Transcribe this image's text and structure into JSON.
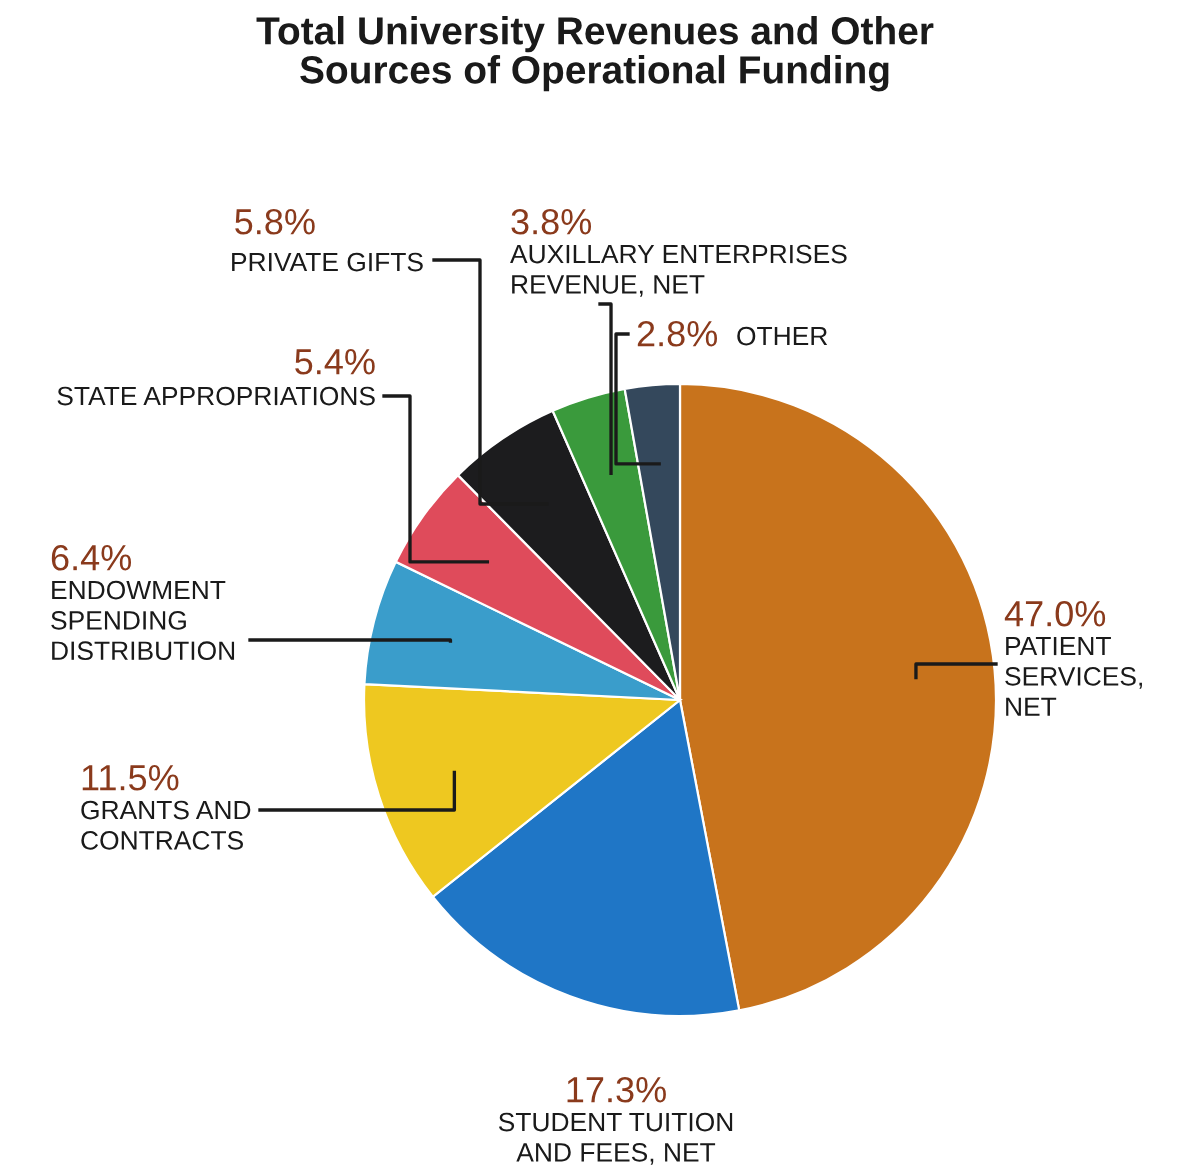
{
  "chart_data": {
    "type": "pie",
    "title": "Total University Revenues and Other\nSources of Operational Funding",
    "categories": [
      "PATIENT\nSERVICES,\nNET",
      "STUDENT TUITION\nAND FEES, NET",
      "GRANTS AND\nCONTRACTS",
      "ENDOWMENT\nSPENDING\nDISTRIBUTION",
      "STATE APPROPRIATIONS",
      "PRIVATE GIFTS",
      "AUXILLARY ENTERPRISES\nREVENUE, NET",
      "OTHER"
    ],
    "values": [
      47.0,
      17.3,
      11.5,
      6.4,
      5.4,
      5.8,
      3.8,
      2.8
    ],
    "value_labels": [
      "47.0%",
      "17.3%",
      "11.5%",
      "6.4%",
      "5.4%",
      "5.8%",
      "3.8%",
      "2.8%"
    ],
    "colors": [
      "#c8731c",
      "#1f76c6",
      "#eec820",
      "#3a9dcb",
      "#df4b5b",
      "#1c1c1e",
      "#3a9a3c",
      "#34485c"
    ]
  }
}
